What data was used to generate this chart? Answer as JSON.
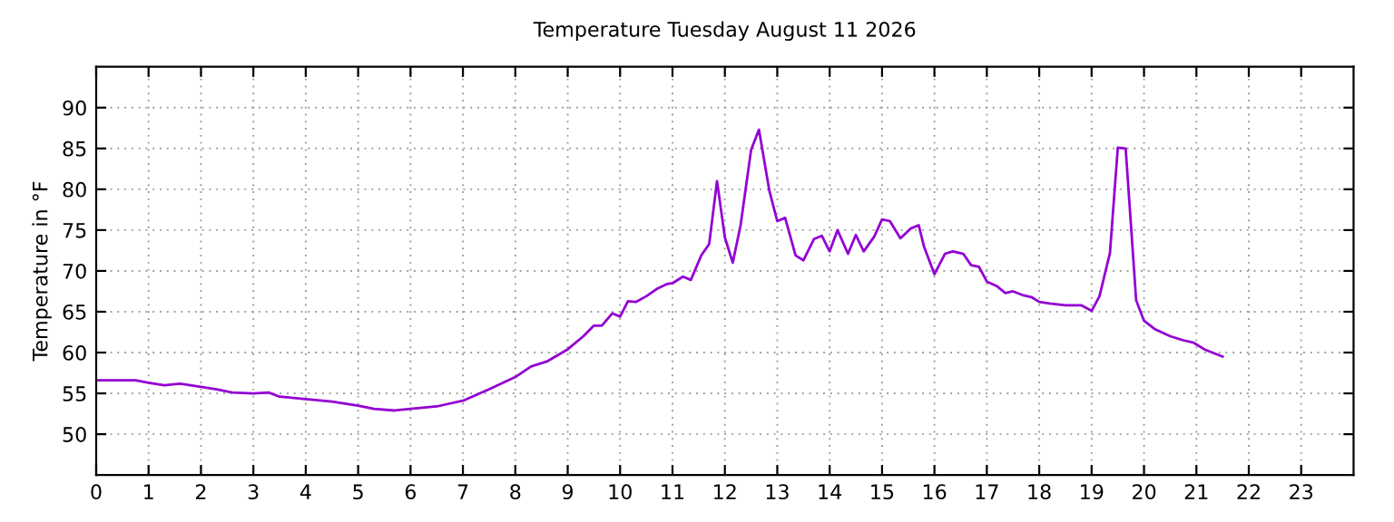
{
  "chart_data": {
    "type": "line",
    "title": "Temperature Tuesday August 11 2026",
    "ylabel": "Temperature in °F",
    "x": [
      0,
      0.75,
      1.0,
      1.3,
      1.6,
      2.0,
      2.3,
      2.6,
      3.0,
      3.3,
      3.5,
      4.0,
      4.5,
      5.0,
      5.3,
      5.7,
      6.0,
      6.5,
      7.0,
      7.5,
      8.0,
      8.3,
      8.6,
      9.0,
      9.3,
      9.5,
      9.65,
      9.85,
      10.0,
      10.15,
      10.3,
      10.5,
      10.7,
      10.9,
      11.0,
      11.2,
      11.35,
      11.55,
      11.7,
      11.85,
      12.0,
      12.15,
      12.3,
      12.5,
      12.65,
      12.85,
      13.0,
      13.15,
      13.35,
      13.5,
      13.7,
      13.85,
      14.0,
      14.15,
      14.35,
      14.5,
      14.65,
      14.85,
      15.0,
      15.15,
      15.35,
      15.55,
      15.7,
      15.8,
      16.0,
      16.2,
      16.35,
      16.55,
      16.7,
      16.85,
      17.0,
      17.2,
      17.35,
      17.5,
      17.7,
      17.85,
      18.0,
      18.2,
      18.5,
      18.8,
      19.0,
      19.15,
      19.35,
      19.5,
      19.65,
      19.85,
      20.0,
      20.2,
      20.5,
      20.75,
      20.95,
      21.15,
      21.5
    ],
    "series": [
      {
        "color": "#9400d3",
        "values": [
          56.6,
          56.6,
          56.3,
          56.0,
          56.2,
          55.8,
          55.5,
          55.1,
          55.0,
          55.1,
          54.6,
          54.3,
          54.0,
          53.5,
          53.1,
          52.9,
          53.1,
          53.4,
          54.1,
          55.5,
          57.0,
          58.3,
          58.9,
          60.4,
          62.0,
          63.3,
          63.3,
          64.8,
          64.4,
          66.3,
          66.2,
          66.9,
          67.8,
          68.4,
          68.5,
          69.3,
          68.9,
          71.9,
          73.3,
          81.0,
          74.1,
          71.0,
          75.6,
          84.8,
          87.3,
          79.8,
          76.1,
          76.5,
          71.9,
          71.3,
          73.9,
          74.3,
          72.4,
          75.0,
          72.1,
          74.4,
          72.4,
          74.2,
          76.3,
          76.1,
          74.0,
          75.2,
          75.6,
          73.0,
          69.6,
          72.1,
          72.4,
          72.1,
          70.7,
          70.5,
          68.7,
          68.1,
          67.3,
          67.5,
          67.0,
          66.8,
          66.2,
          66.0,
          65.8,
          65.8,
          65.1,
          66.9,
          72.2,
          85.1,
          85.0,
          66.4,
          63.9,
          62.9,
          62.0,
          61.5,
          61.2,
          60.4,
          59.5
        ]
      }
    ],
    "xlim": [
      0,
      24
    ],
    "xticks": [
      0,
      1,
      2,
      3,
      4,
      5,
      6,
      7,
      8,
      9,
      10,
      11,
      12,
      13,
      14,
      15,
      16,
      17,
      18,
      19,
      20,
      21,
      22,
      23
    ],
    "ylim": [
      45,
      95
    ],
    "yticks": [
      50,
      55,
      60,
      65,
      70,
      75,
      80,
      85,
      90
    ],
    "grid": true,
    "marker": "none",
    "line_style": "solid",
    "legend": false
  }
}
